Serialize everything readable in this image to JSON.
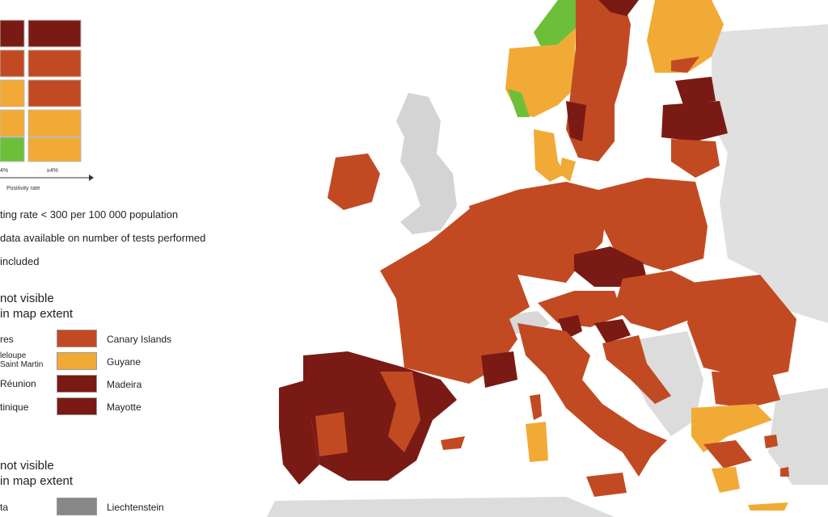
{
  "legend": {
    "matrix_x_ticks": [
      "4%",
      "≥4%"
    ],
    "matrix_x_label": "Positivity rate",
    "notes": [
      "ting rate < 300 per 100 000 population",
      "data available on number of tests performed",
      "included"
    ],
    "outermost_heading_1": "not visible",
    "outermost_heading_2": "in map extent",
    "outermost_left": [
      "res",
      "leloupe",
      "Saint Martin",
      "Réunion",
      "tinique"
    ],
    "outermost_right": [
      "Canary Islands",
      "Guyane",
      "Madeira",
      "Mayotte"
    ],
    "small_heading_1": "not visible",
    "small_heading_2": "in map extent",
    "small_left": [
      "ta"
    ],
    "small_right": [
      "Liechtenstein"
    ]
  },
  "colors": {
    "dark_red": "#7a1a14",
    "red": "#c24a22",
    "orange": "#f2aa36",
    "green": "#6dbf3a",
    "grey": "#d4d4d4",
    "light_grey": "#e4e4e4",
    "sea": "#ffffff",
    "nodata": "#888888"
  }
}
